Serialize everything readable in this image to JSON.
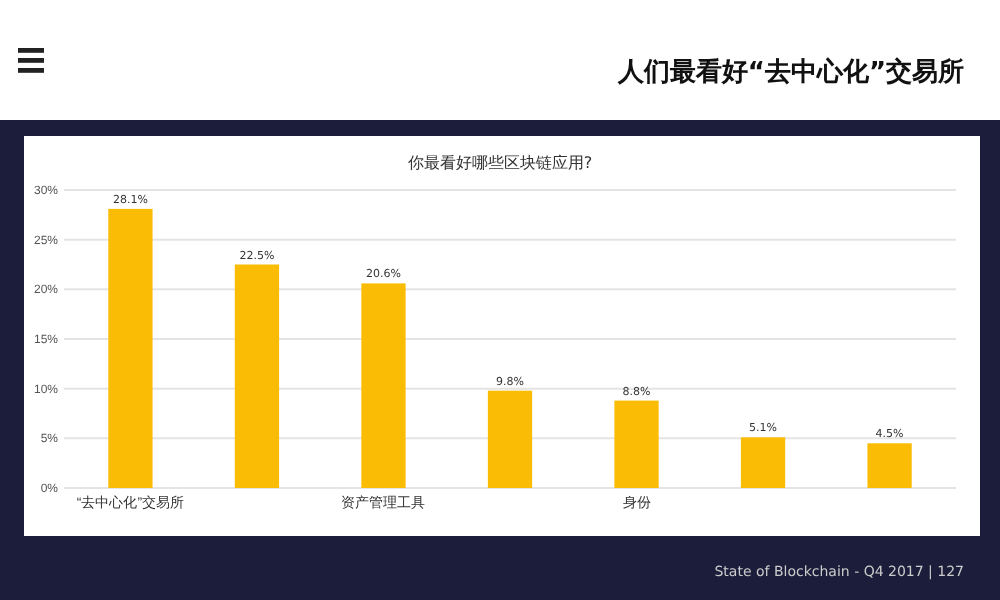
{
  "chart_data": {
    "type": "bar",
    "title": "你最看好哪些区块链应用?",
    "categories": [
      "“去中心化”交易所",
      null,
      "资产管理工具",
      null,
      "身份",
      null,
      null
    ],
    "values": [
      28.1,
      22.5,
      20.6,
      9.8,
      8.8,
      5.1,
      4.5
    ],
    "value_labels": [
      "28.1%",
      "22.5%",
      "20.6%",
      "9.8%",
      "8.8%",
      "5.1%",
      "4.5%"
    ],
    "color": "#fbbc05",
    "ylim": [
      0,
      30
    ],
    "yticks": [
      {
        "value": 0,
        "label": "0%"
      },
      {
        "value": 5,
        "label": "5%"
      },
      {
        "value": 10,
        "label": "10%"
      },
      {
        "value": 15,
        "label": "15%"
      },
      {
        "value": 20,
        "label": "20%"
      },
      {
        "value": 25,
        "label": "25%"
      },
      {
        "value": 30,
        "label": "30%"
      }
    ],
    "grid": "y",
    "annotations": [
      "人们最看好“去中心化”交易所",
      "State of Blockchain - Q4 2017 | 127"
    ]
  }
}
